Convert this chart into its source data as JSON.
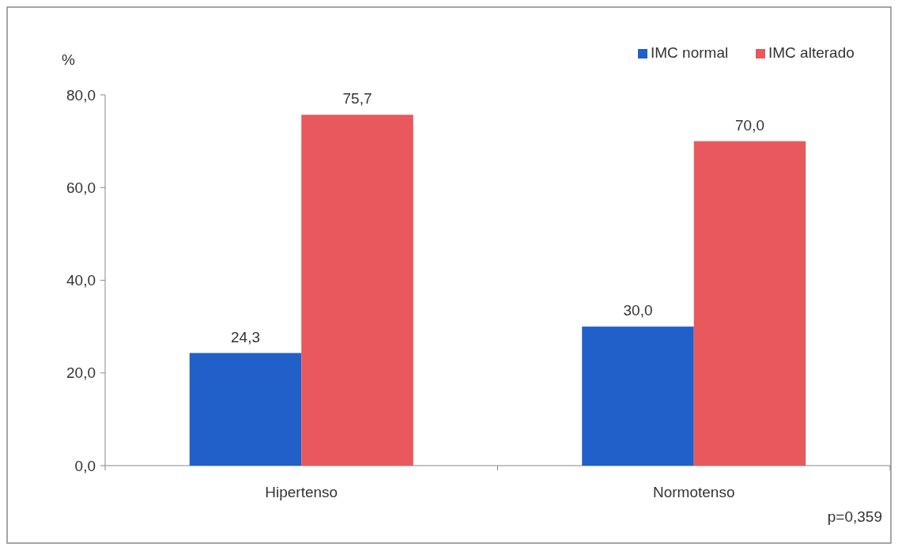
{
  "chart_data": {
    "type": "bar",
    "ylabel": "%",
    "categories": [
      "Hipertenso",
      "Normotenso"
    ],
    "series": [
      {
        "name": "IMC normal",
        "color": "#2060c8",
        "values": [
          24.3,
          30.0
        ],
        "value_labels": [
          "24,3",
          "30,0"
        ]
      },
      {
        "name": "IMC alterado",
        "color": "#e8585c",
        "values": [
          75.7,
          70.0
        ],
        "value_labels": [
          "75,7",
          "70,0"
        ]
      }
    ],
    "ylim": [
      0,
      80
    ],
    "yticks": [
      {
        "value": 0,
        "label": "0,0"
      },
      {
        "value": 20,
        "label": "20,0"
      },
      {
        "value": 40,
        "label": "40,0"
      },
      {
        "value": 60,
        "label": "60,0"
      },
      {
        "value": 80,
        "label": "80,0"
      }
    ],
    "grid": false,
    "legend": "top right",
    "annotations": [
      "p=0,359"
    ]
  }
}
